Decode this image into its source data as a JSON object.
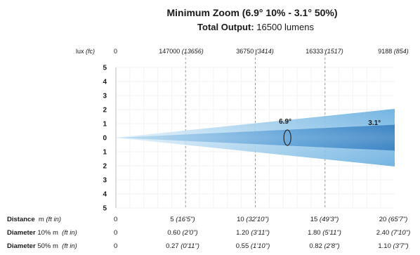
{
  "chart_data": {
    "type": "area",
    "title": "Minimum Zoom (6.9° 10% - 3.1° 50%)",
    "subtitle_label": "Total Output:",
    "subtitle_value": "16500 lumens",
    "lux_label": "lux",
    "lux_unit": "(fc)",
    "lux_zero": "0",
    "lux_values": [
      {
        "lux": "147000",
        "fc": "(13656)"
      },
      {
        "lux": "36750",
        "fc": "(3414)"
      },
      {
        "lux": "16333",
        "fc": "(1517)"
      },
      {
        "lux": "9188",
        "fc": "(854)"
      }
    ],
    "y_ticks": [
      "5",
      "4",
      "3",
      "2",
      "1",
      "0",
      "1",
      "2",
      "3",
      "4",
      "5"
    ],
    "y_range": [
      -5,
      5
    ],
    "x_range": [
      0,
      20
    ],
    "x_gridlines": [
      5,
      10,
      15
    ],
    "beams": [
      {
        "label": "6.9°",
        "angle": 6.9,
        "color": "#7ab8e3"
      },
      {
        "label": "3.1°",
        "angle": 3.1,
        "color": "#1f78c2"
      }
    ],
    "rows": {
      "distance": {
        "label": "Distance",
        "unit": "m",
        "unit_alt": "(ft in)",
        "zero": "0",
        "values": [
          {
            "m": "5",
            "ft": "(16'5\")"
          },
          {
            "m": "10",
            "ft": "(32'10\")"
          },
          {
            "m": "15",
            "ft": "(49'3\")"
          },
          {
            "m": "20",
            "ft": "(65'7\")"
          }
        ]
      },
      "diameter10": {
        "label": "Diameter",
        "pct": "10%",
        "unit": "m",
        "unit_alt": "(ft in)",
        "zero": "0",
        "values": [
          {
            "m": "0.60",
            "ft": "(2'0\")"
          },
          {
            "m": "1.20",
            "ft": "(3'11\")"
          },
          {
            "m": "1.80",
            "ft": "(5'11\")"
          },
          {
            "m": "2.40",
            "ft": "(7'10\")"
          }
        ]
      },
      "diameter50": {
        "label": "Diameter",
        "pct": "50%",
        "unit": "m",
        "unit_alt": "(ft in)",
        "zero": "0",
        "values": [
          {
            "m": "0.27",
            "ft": "(0'11\")"
          },
          {
            "m": "0.55",
            "ft": "(1'10\")"
          },
          {
            "m": "0.82",
            "ft": "(2'8\")"
          },
          {
            "m": "1.10",
            "ft": "(3'7\")"
          }
        ]
      }
    }
  }
}
